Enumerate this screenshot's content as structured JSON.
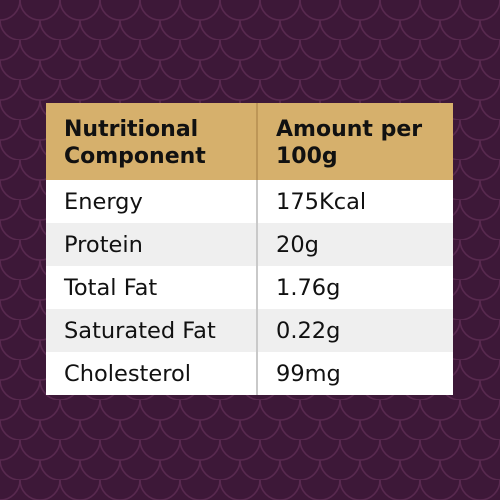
{
  "colors": {
    "background": "#3d1838",
    "pattern_stroke": "#58294f",
    "header_fill": "#d6b06c",
    "row_light": "#ffffff",
    "row_alt": "#efefef"
  },
  "table": {
    "headers": [
      "Nutritional Component",
      "Amount per 100g"
    ],
    "rows": [
      {
        "component": "Energy",
        "amount": "175Kcal"
      },
      {
        "component": "Protein",
        "amount": "20g"
      },
      {
        "component": "Total Fat",
        "amount": "1.76g"
      },
      {
        "component": "Saturated Fat",
        "amount": "0.22g"
      },
      {
        "component": "Cholesterol",
        "amount": "99mg"
      }
    ]
  }
}
